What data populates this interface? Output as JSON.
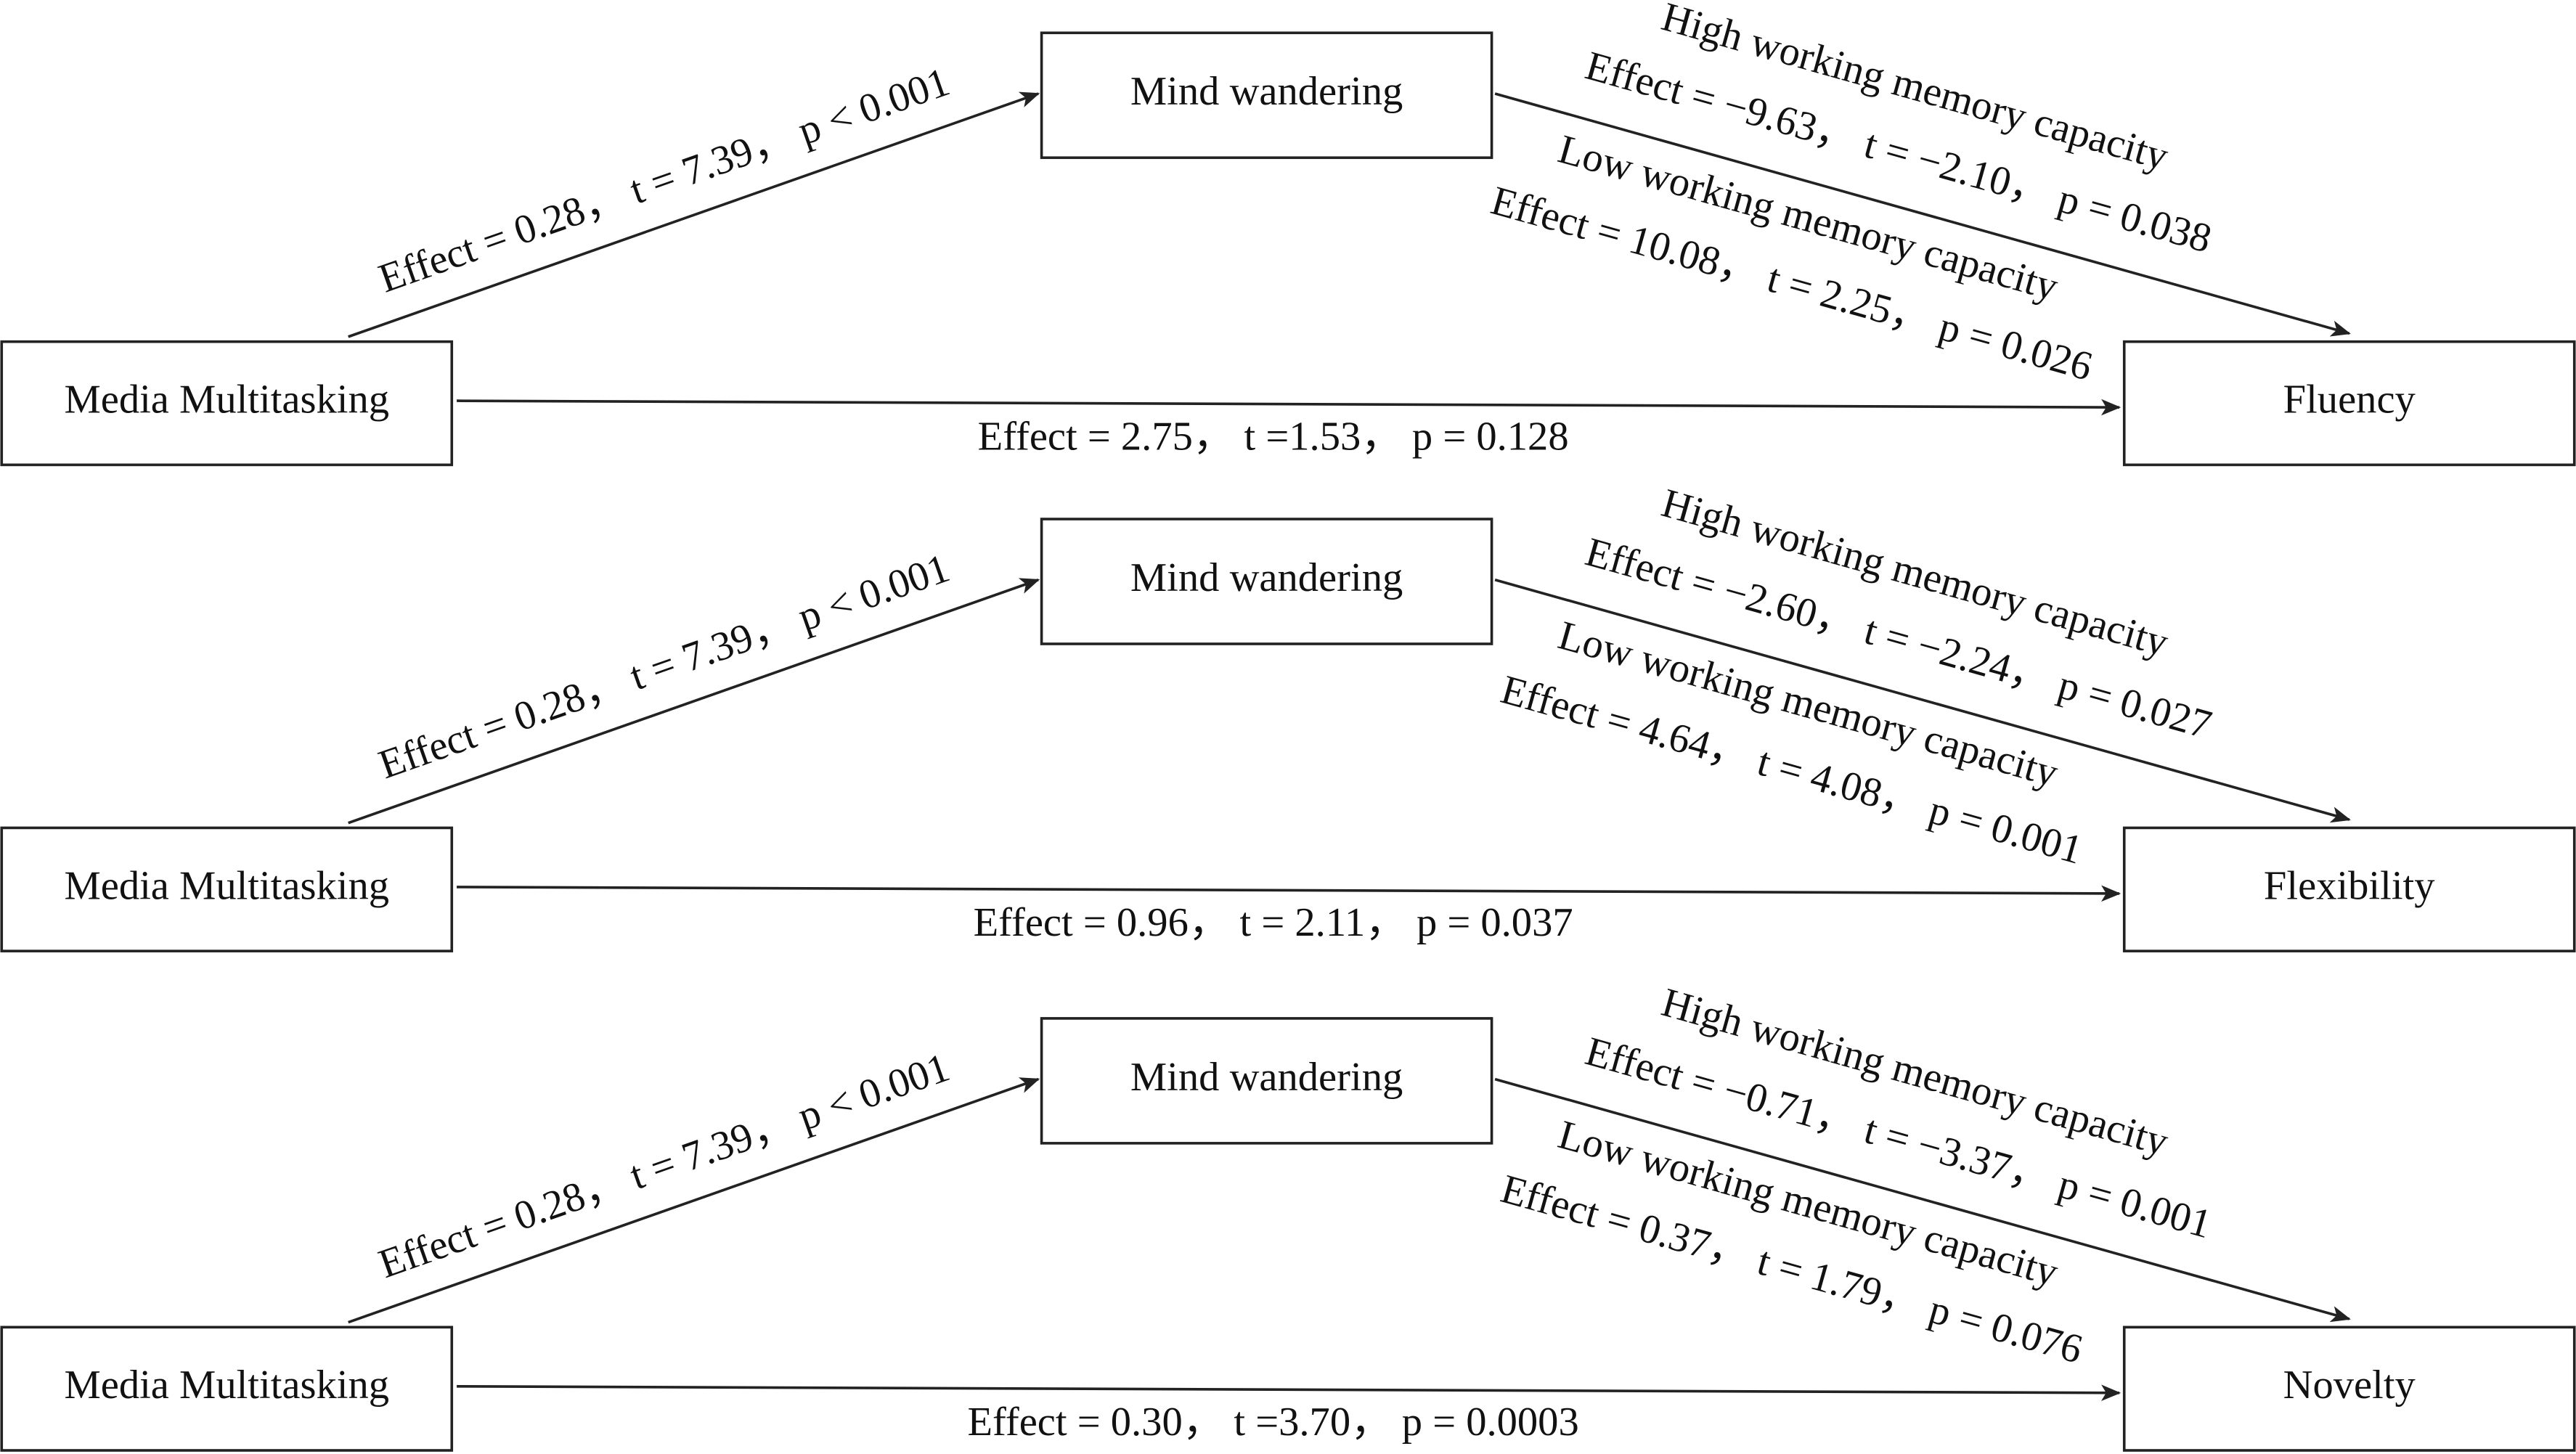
{
  "panels": [
    {
      "predictor": "Media Multitasking",
      "mediator": "Mind wandering",
      "outcome": "Fluency",
      "a_path": "Effect = 0.28， t = 7.39， p < 0.001",
      "high_title": "High working memory capacity",
      "high_stats": "Effect = −9.63， t = −2.10， p = 0.038",
      "low_title": "Low working memory capacity",
      "low_stats": "Effect = 10.08， t = 2.25， p = 0.026",
      "direct": "Effect = 2.75， t =1.53， p = 0.128"
    },
    {
      "predictor": "Media Multitasking",
      "mediator": "Mind wandering",
      "outcome": "Flexibility",
      "a_path": "Effect = 0.28， t = 7.39， p < 0.001",
      "high_title": "High working memory capacity",
      "high_stats": "Effect = −2.60， t = −2.24， p = 0.027",
      "low_title": "Low working memory capacity",
      "low_stats": "Effect = 4.64， t = 4.08， p = 0.001",
      "direct": "Effect = 0.96， t = 2.11， p = 0.037"
    },
    {
      "predictor": "Media Multitasking",
      "mediator": "Mind wandering",
      "outcome": "Novelty",
      "a_path": "Effect = 0.28， t = 7.39， p < 0.001",
      "high_title": "High working memory capacity",
      "high_stats": "Effect = −0.71， t = −3.37， p = 0.001",
      "low_title": "Low working memory capacity",
      "low_stats": "Effect = 0.37， t = 1.79， p = 0.076",
      "direct": "Effect = 0.30， t =3.70， p = 0.0003"
    }
  ]
}
